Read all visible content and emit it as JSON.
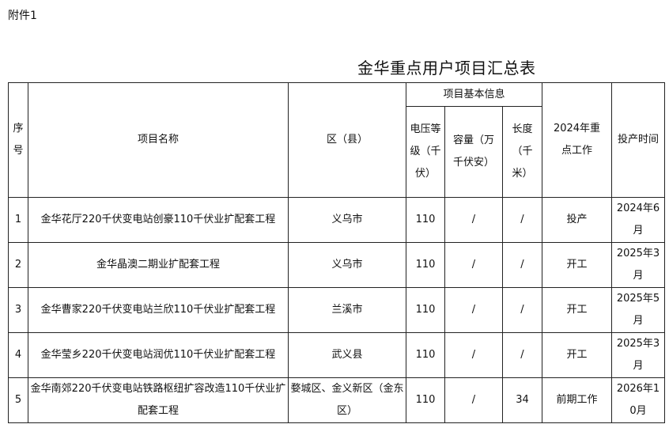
{
  "attachment_label": "附件1",
  "title": "金华重点用户项目汇总表",
  "headers": {
    "index": "序号",
    "name": "项目名称",
    "district": "区（县）",
    "basic_info": "项目基本信息",
    "voltage": "电压等级（千伏）",
    "capacity": "容量（万千伏安）",
    "length": "长度（千米）",
    "work": "2024年重点工作",
    "date": "投产时间"
  },
  "rows": [
    {
      "index": "1",
      "name": "金华花厅220千伏变电站创豪110千伏业扩配套工程",
      "district": "义乌市",
      "voltage": "110",
      "capacity": "/",
      "length": "/",
      "work": "投产",
      "date": "2024年6月"
    },
    {
      "index": "2",
      "name": "金华晶澳二期业扩配套工程",
      "district": "义乌市",
      "voltage": "110",
      "capacity": "/",
      "length": "/",
      "work": "开工",
      "date": "2025年3月"
    },
    {
      "index": "3",
      "name": "金华曹家220千伏变电站兰欣110千伏业扩配套工程",
      "district": "兰溪市",
      "voltage": "110",
      "capacity": "/",
      "length": "/",
      "work": "开工",
      "date": "2025年5月"
    },
    {
      "index": "4",
      "name": "金华莹乡220千伏变电站润优110千伏业扩配套工程",
      "district": "武义县",
      "voltage": "110",
      "capacity": "/",
      "length": "/",
      "work": "开工",
      "date": "2025年3月"
    },
    {
      "index": "5",
      "name": "金华南郊220千伏变电站铁路枢纽扩容改造110千伏业扩配套工程",
      "district": "婺城区、金义新区（金东区）",
      "voltage": "110",
      "capacity": "/",
      "length": "34",
      "work": "前期工作",
      "date": "2026年10月"
    }
  ]
}
